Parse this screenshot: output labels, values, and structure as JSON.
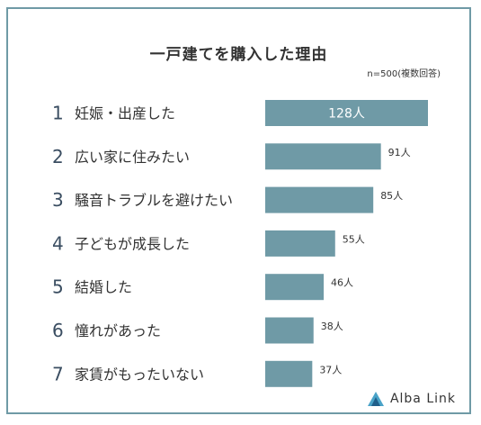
{
  "chart_data": {
    "type": "bar",
    "orientation": "horizontal",
    "title": "一戸建てを購入した理由",
    "note": "n=500(複数回答)",
    "unit": "人",
    "categories": [
      "妊娠・出産した",
      "広い家に住みたい",
      "騒音トラブルを避けたい",
      "子どもが成長した",
      "結婚した",
      "憧れがあった",
      "家賃がもったいない"
    ],
    "ranks": [
      "1",
      "2",
      "3",
      "4",
      "5",
      "6",
      "7"
    ],
    "values": [
      128,
      91,
      85,
      55,
      46,
      38,
      37
    ],
    "value_labels": [
      "128人",
      "91人",
      "85人",
      "55人",
      "46人",
      "38人",
      "37人"
    ],
    "xlim": [
      0,
      128
    ],
    "grid": false,
    "legend": "none",
    "bar_color": "#6f9aa6"
  },
  "brand": {
    "name": "Alba Link"
  }
}
